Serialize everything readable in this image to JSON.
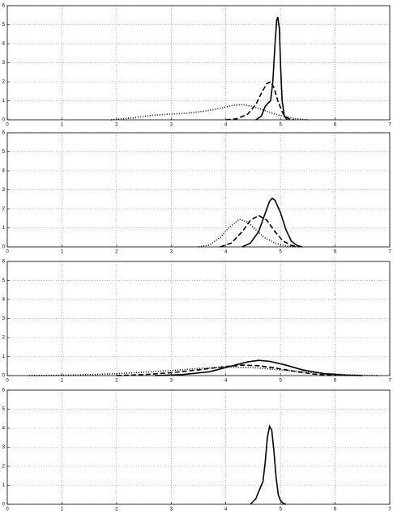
{
  "chart_data": [
    {
      "type": "line",
      "xlim": [
        0,
        7
      ],
      "ylim": [
        0,
        6
      ],
      "xticks": [
        0,
        1,
        2,
        3,
        4,
        5,
        6,
        7
      ],
      "yticks": [
        0,
        1,
        2,
        3,
        4,
        5,
        6
      ],
      "grid": true,
      "series": [
        {
          "color": "#000000",
          "line_style": "solid",
          "x": [
            4.55,
            4.65,
            4.72,
            4.78,
            4.82,
            4.86,
            4.9,
            4.93,
            4.95,
            4.98,
            5.0,
            5.03,
            5.07,
            5.12
          ],
          "values": [
            0,
            0.2,
            0.7,
            0.9,
            1.0,
            2.0,
            4.0,
            5.2,
            5.4,
            4.8,
            3.0,
            1.0,
            0.2,
            0
          ]
        },
        {
          "color": "#000000",
          "line_style": "dashed",
          "x": [
            4.0,
            4.2,
            4.4,
            4.55,
            4.65,
            4.75,
            4.82,
            4.88,
            4.95,
            5.05,
            5.15,
            5.25
          ],
          "values": [
            0,
            0.05,
            0.3,
            0.8,
            1.4,
            1.9,
            2.0,
            1.7,
            1.0,
            0.3,
            0.05,
            0
          ]
        },
        {
          "color": "#000000",
          "line_style": "dotted",
          "x": [
            1.9,
            2.3,
            2.7,
            3.0,
            3.3,
            3.6,
            3.9,
            4.1,
            4.3,
            4.5,
            4.7,
            4.9,
            5.1,
            5.3,
            5.5
          ],
          "values": [
            0,
            0.1,
            0.25,
            0.3,
            0.35,
            0.45,
            0.6,
            0.75,
            0.8,
            0.7,
            0.5,
            0.3,
            0.15,
            0.05,
            0
          ]
        }
      ]
    },
    {
      "type": "line",
      "xlim": [
        0,
        7
      ],
      "ylim": [
        0,
        6
      ],
      "xticks": [
        0,
        1,
        2,
        3,
        4,
        5,
        6,
        7
      ],
      "yticks": [
        0,
        1,
        2,
        3,
        4,
        5,
        6
      ],
      "grid": true,
      "series": [
        {
          "color": "#000000",
          "line_style": "solid",
          "x": [
            4.3,
            4.45,
            4.6,
            4.7,
            4.8,
            4.85,
            4.9,
            5.0,
            5.1,
            5.2,
            5.3,
            5.4
          ],
          "values": [
            0,
            0.2,
            0.8,
            1.6,
            2.4,
            2.55,
            2.45,
            1.8,
            0.9,
            0.3,
            0.08,
            0
          ]
        },
        {
          "color": "#000000",
          "line_style": "dashed",
          "x": [
            3.9,
            4.1,
            4.3,
            4.45,
            4.6,
            4.75,
            4.9,
            5.05,
            5.2,
            5.35
          ],
          "values": [
            0,
            0.2,
            0.8,
            1.4,
            1.65,
            1.4,
            0.8,
            0.3,
            0.08,
            0
          ]
        },
        {
          "color": "#000000",
          "line_style": "dotted",
          "x": [
            3.5,
            3.7,
            3.9,
            4.05,
            4.25,
            4.4,
            4.55,
            4.7,
            4.9,
            5.1,
            5.3
          ],
          "values": [
            0,
            0.1,
            0.5,
            1.0,
            1.45,
            1.3,
            0.9,
            0.5,
            0.2,
            0.05,
            0
          ]
        }
      ]
    },
    {
      "type": "line",
      "xlim": [
        0,
        7
      ],
      "ylim": [
        0,
        6
      ],
      "xticks": [
        0,
        1,
        2,
        3,
        4,
        5,
        6,
        7
      ],
      "yticks": [
        0,
        1,
        2,
        3,
        4,
        5,
        6
      ],
      "grid": true,
      "series": [
        {
          "color": "#000000",
          "line_style": "solid",
          "x": [
            2.7,
            3.2,
            3.7,
            4.1,
            4.4,
            4.6,
            4.8,
            5.1,
            5.4,
            5.8,
            6.2,
            6.5
          ],
          "values": [
            0,
            0.05,
            0.2,
            0.5,
            0.72,
            0.8,
            0.75,
            0.55,
            0.3,
            0.1,
            0.02,
            0
          ]
        },
        {
          "color": "#000000",
          "line_style": "dashed",
          "x": [
            2.0,
            2.5,
            3.0,
            3.5,
            4.0,
            4.3,
            4.6,
            4.9,
            5.2,
            5.6,
            6.0
          ],
          "values": [
            0,
            0.05,
            0.15,
            0.3,
            0.48,
            0.55,
            0.52,
            0.4,
            0.25,
            0.08,
            0
          ]
        },
        {
          "color": "#000000",
          "line_style": "dotted",
          "x": [
            0.4,
            1,
            1.5,
            2,
            2.5,
            3,
            3.5,
            4,
            4.5,
            5,
            5.5,
            6,
            6.5,
            6.8
          ],
          "values": [
            0,
            0.02,
            0.05,
            0.1,
            0.18,
            0.27,
            0.37,
            0.45,
            0.42,
            0.3,
            0.18,
            0.08,
            0.02,
            0
          ]
        }
      ]
    },
    {
      "type": "line",
      "xlim": [
        0,
        7
      ],
      "ylim": [
        0,
        6
      ],
      "xticks": [
        0,
        1,
        2,
        3,
        4,
        5,
        6,
        7
      ],
      "yticks": [
        0,
        1,
        2,
        3,
        4,
        5,
        6
      ],
      "grid": true,
      "series": [
        {
          "color": "#000000",
          "line_style": "solid",
          "x": [
            4.45,
            4.55,
            4.62,
            4.68,
            4.72,
            4.76,
            4.8,
            4.84,
            4.88,
            4.92,
            4.96,
            5.0,
            5.05,
            5.1
          ],
          "values": [
            0,
            0.3,
            0.8,
            1.2,
            2.2,
            3.5,
            4.1,
            3.9,
            2.8,
            1.4,
            0.5,
            0.2,
            0.05,
            0
          ]
        }
      ]
    }
  ]
}
